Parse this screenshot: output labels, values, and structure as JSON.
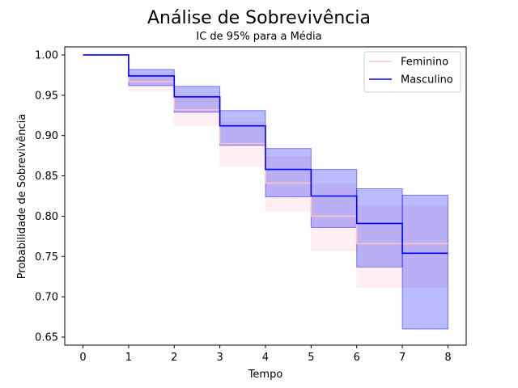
{
  "chart_data": {
    "type": "line",
    "subtype": "step-survival-with-confidence-bands",
    "title": "Análise de Sobrevivência",
    "subtitle": "IC de 95% para a Média",
    "xlabel": "Tempo",
    "ylabel": "Probabilidade de Sobrevivência",
    "xlim": [
      -0.4,
      8.4
    ],
    "ylim": [
      0.64,
      1.01
    ],
    "x_ticks": [
      0,
      1,
      2,
      3,
      4,
      5,
      6,
      7,
      8
    ],
    "x_tick_labels": [
      "0",
      "1",
      "2",
      "3",
      "4",
      "5",
      "6",
      "7",
      "8"
    ],
    "y_ticks": [
      0.65,
      0.7,
      0.75,
      0.8,
      0.85,
      0.9,
      0.95,
      1.0
    ],
    "y_tick_labels": [
      "0.65",
      "0.70",
      "0.75",
      "0.80",
      "0.85",
      "0.90",
      "0.95",
      "1.00"
    ],
    "grid": false,
    "legend_position": "top-right",
    "x": [
      0,
      1,
      2,
      3,
      4,
      5,
      6,
      7,
      8
    ],
    "series": [
      {
        "name": "Feminino",
        "color": "#ffc0cb",
        "band_opacity": 0.25,
        "values": [
          1.0,
          0.967,
          0.932,
          0.89,
          0.841,
          0.8,
          0.766,
          0.766,
          0.766
        ],
        "lower": [
          1.0,
          0.955,
          0.912,
          0.862,
          0.806,
          0.757,
          0.712,
          0.712,
          0.712
        ],
        "upper": [
          1.0,
          0.977,
          0.951,
          0.917,
          0.874,
          0.84,
          0.813,
          0.813,
          0.813
        ]
      },
      {
        "name": "Masculino",
        "color": "#0000ff",
        "band_opacity": 0.27,
        "values": [
          1.0,
          0.974,
          0.948,
          0.912,
          0.858,
          0.825,
          0.791,
          0.754,
          0.754
        ],
        "lower": [
          1.0,
          0.962,
          0.929,
          0.888,
          0.824,
          0.786,
          0.737,
          0.66,
          0.66
        ],
        "upper": [
          1.0,
          0.982,
          0.961,
          0.931,
          0.884,
          0.858,
          0.834,
          0.826,
          0.826
        ]
      }
    ]
  }
}
